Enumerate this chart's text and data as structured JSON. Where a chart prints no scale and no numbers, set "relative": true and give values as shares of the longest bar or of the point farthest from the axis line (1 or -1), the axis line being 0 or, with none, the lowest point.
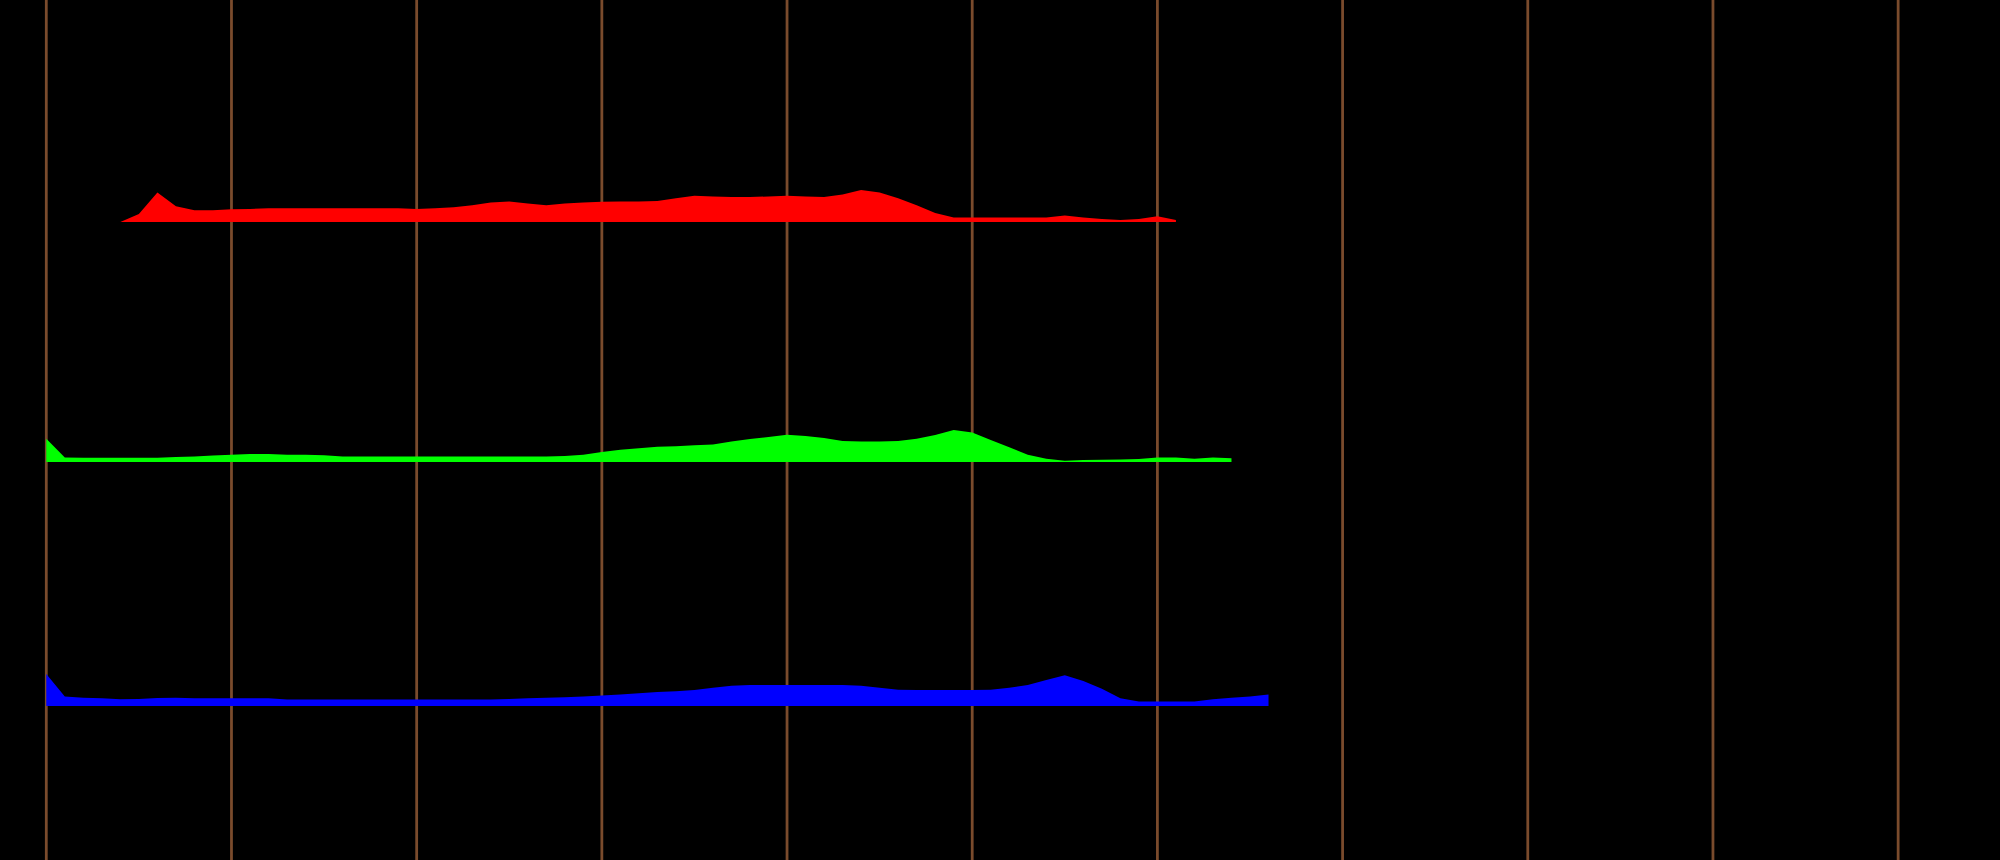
{
  "chart_data": [
    {
      "type": "area",
      "relative": true,
      "grid": "x",
      "categories": [
        null,
        null,
        null,
        null,
        null,
        null,
        null,
        null,
        null,
        null,
        null,
        null,
        null,
        null,
        null,
        null,
        null,
        null,
        null,
        null,
        null,
        null,
        null,
        null,
        null,
        null,
        null,
        null,
        null,
        null,
        null,
        null,
        null,
        null,
        null,
        null,
        null,
        null,
        null,
        null,
        null,
        null,
        null,
        null,
        null,
        null,
        null,
        null,
        null,
        null,
        null,
        null,
        null,
        null,
        null,
        null,
        null,
        null,
        null,
        null,
        null,
        null,
        null,
        null,
        null,
        null,
        null,
        null,
        null,
        null,
        null,
        null,
        null,
        null,
        null,
        null,
        null,
        null,
        null,
        null,
        null,
        null,
        null,
        null,
        null,
        null,
        null,
        null,
        null,
        null,
        null,
        null,
        null,
        null,
        null,
        null,
        null,
        null,
        null,
        null,
        null,
        null,
        null,
        null,
        null,
        null,
        null,
        null
      ],
      "series": [
        {
          "color": "#ff0000",
          "values": [
            null,
            null,
            null,
            null,
            null,
            null,
            0,
            0.25,
            0.92,
            0.49,
            0.37,
            0.37,
            0.4,
            0.41,
            0.43,
            0.43,
            0.43,
            0.43,
            0.43,
            0.43,
            0.43,
            0.43,
            0.41,
            0.43,
            0.46,
            0.52,
            0.61,
            0.64,
            0.58,
            0.52,
            0.58,
            0.61,
            0.63,
            0.64,
            0.64,
            0.66,
            0.74,
            0.82,
            0.8,
            0.78,
            0.78,
            0.8,
            0.82,
            0.8,
            0.78,
            0.86,
            1,
            0.92,
            0.74,
            0.52,
            0.28,
            0.14,
            0.14,
            0.14,
            0.14,
            0.14,
            0.14,
            0.2,
            0.14,
            0.09,
            0.06,
            0.09,
            0.18,
            0.06,
            null,
            null,
            null,
            null,
            null,
            null,
            null,
            null,
            null,
            null,
            null,
            null,
            null,
            null,
            null,
            null,
            null,
            null,
            null,
            null,
            null,
            null,
            null,
            null,
            null,
            null,
            null,
            null,
            null,
            null,
            null,
            null,
            null,
            null,
            null,
            null,
            null,
            null,
            null,
            null,
            null,
            null,
            null,
            null
          ]
        }
      ]
    },
    {
      "type": "area",
      "relative": true,
      "categories": [
        null,
        null,
        null,
        null,
        null,
        null,
        null,
        null,
        null,
        null,
        null,
        null,
        null,
        null,
        null,
        null,
        null,
        null,
        null,
        null,
        null,
        null,
        null,
        null,
        null,
        null,
        null,
        null,
        null,
        null,
        null,
        null,
        null,
        null,
        null,
        null,
        null,
        null,
        null,
        null,
        null,
        null,
        null,
        null,
        null,
        null,
        null,
        null,
        null,
        null,
        null,
        null,
        null,
        null,
        null,
        null,
        null,
        null,
        null,
        null,
        null,
        null,
        null,
        null,
        null,
        null,
        null,
        null,
        null,
        null,
        null,
        null,
        null,
        null,
        null,
        null,
        null,
        null,
        null,
        null,
        null,
        null,
        null,
        null,
        null,
        null,
        null,
        null,
        null,
        null,
        null,
        null,
        null,
        null,
        null,
        null,
        null,
        null,
        null,
        null,
        null,
        null,
        null,
        null,
        null,
        null,
        null,
        null
      ],
      "series": [
        {
          "color": "#00ff00",
          "values": [
            null,
            null,
            0.73,
            0.14,
            0.13,
            0.13,
            0.13,
            0.13,
            0.13,
            0.16,
            0.17,
            0.2,
            0.23,
            0.25,
            0.25,
            0.23,
            0.23,
            0.21,
            0.17,
            0.17,
            0.17,
            0.17,
            0.17,
            0.17,
            0.17,
            0.17,
            0.17,
            0.17,
            0.17,
            0.17,
            0.19,
            0.23,
            0.31,
            0.38,
            0.43,
            0.48,
            0.49,
            0.52,
            0.55,
            0.64,
            0.72,
            0.78,
            0.85,
            0.81,
            0.75,
            0.66,
            0.64,
            0.64,
            0.66,
            0.73,
            0.84,
            1,
            0.92,
            0.69,
            0.46,
            0.23,
            0.1,
            0.04,
            0.06,
            0.07,
            0.08,
            0.09,
            0.14,
            0.14,
            0.1,
            0.14,
            0.12,
            null,
            null,
            null,
            null,
            null,
            null,
            null,
            null,
            null,
            null,
            null,
            null,
            null,
            null,
            null,
            null,
            null,
            null,
            null,
            null,
            null,
            null,
            null,
            null,
            null,
            null,
            null,
            null,
            null,
            null,
            null,
            null,
            null,
            null,
            null,
            null,
            null,
            null,
            null,
            null,
            null
          ]
        }
      ]
    },
    {
      "type": "area",
      "relative": true,
      "categories": [
        null,
        null,
        null,
        null,
        null,
        null,
        null,
        null,
        null,
        null,
        null,
        null,
        null,
        null,
        null,
        null,
        null,
        null,
        null,
        null,
        null,
        null,
        null,
        null,
        null,
        null,
        null,
        null,
        null,
        null,
        null,
        null,
        null,
        null,
        null,
        null,
        null,
        null,
        null,
        null,
        null,
        null,
        null,
        null,
        null,
        null,
        null,
        null,
        null,
        null,
        null,
        null,
        null,
        null,
        null,
        null,
        null,
        null,
        null,
        null,
        null,
        null,
        null,
        null,
        null,
        null,
        null,
        null,
        null,
        null,
        null,
        null,
        null,
        null,
        null,
        null,
        null,
        null,
        null,
        null,
        null,
        null,
        null,
        null,
        null,
        null,
        null,
        null,
        null,
        null,
        null,
        null,
        null,
        null,
        null,
        null,
        null,
        null,
        null,
        null,
        null,
        null,
        null,
        null,
        null,
        null,
        null,
        null
      ],
      "series": [
        {
          "color": "#0000ff",
          "values": [
            null,
            null,
            1,
            0.3,
            0.26,
            0.24,
            0.21,
            0.22,
            0.25,
            0.26,
            0.24,
            0.24,
            0.24,
            0.24,
            0.24,
            0.2,
            0.2,
            0.2,
            0.2,
            0.2,
            0.2,
            0.2,
            0.2,
            0.2,
            0.2,
            0.2,
            0.2,
            0.22,
            0.24,
            0.26,
            0.27,
            0.3,
            0.33,
            0.36,
            0.4,
            0.44,
            0.46,
            0.5,
            0.57,
            0.63,
            0.66,
            0.66,
            0.66,
            0.66,
            0.66,
            0.66,
            0.63,
            0.57,
            0.51,
            0.5,
            0.5,
            0.5,
            0.5,
            0.51,
            0.57,
            0.66,
            0.81,
            0.96,
            0.78,
            0.54,
            0.24,
            0.14,
            0.14,
            0.14,
            0.14,
            0.21,
            0.26,
            0.3,
            0.36,
            null,
            null,
            null,
            null,
            null,
            null,
            null,
            null,
            null,
            null,
            null,
            null,
            null,
            null,
            null,
            null,
            null,
            null,
            null,
            null,
            null,
            null,
            null,
            null,
            null,
            null,
            null,
            null,
            null,
            null,
            null,
            null,
            null,
            null,
            null,
            null,
            null,
            null,
            null
          ]
        }
      ]
    }
  ]
}
